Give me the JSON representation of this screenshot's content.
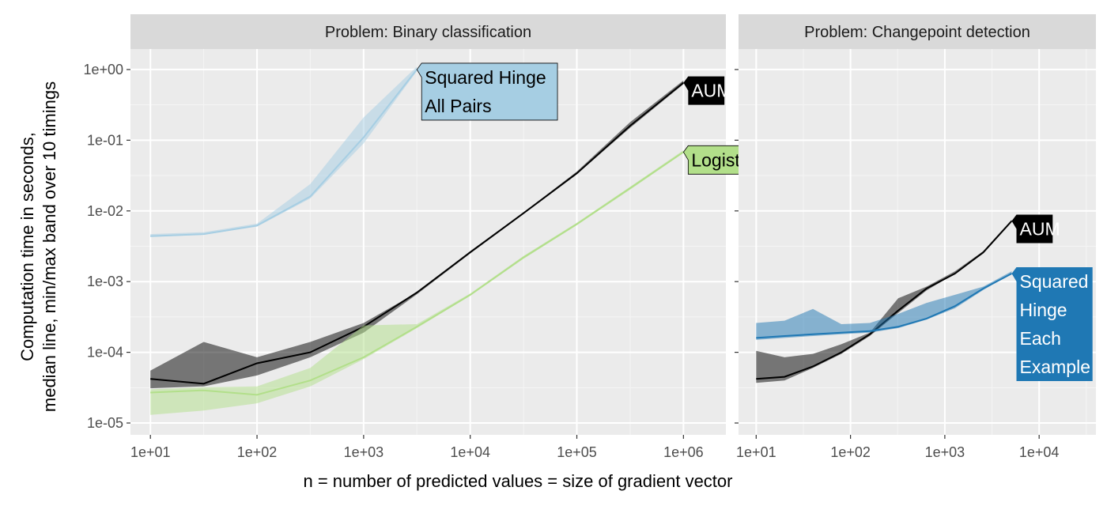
{
  "chart_data": {
    "type": "line",
    "xlabel": "n = number of predicted values = size of gradient vector",
    "ylabel_lines": [
      "Computation time in seconds,",
      "median line, min/max band over 10 timings"
    ],
    "x_scale": "log10",
    "y_scale": "log10",
    "grid": true,
    "legend": "none (direct labels)",
    "y_ticks": [
      {
        "value": 1e-05,
        "label": "1e-05"
      },
      {
        "value": 0.0001,
        "label": "1e-04"
      },
      {
        "value": 0.001,
        "label": "1e-03"
      },
      {
        "value": 0.01,
        "label": "1e-02"
      },
      {
        "value": 0.1,
        "label": "1e-01"
      },
      {
        "value": 1,
        "label": "1e+00"
      }
    ],
    "ylim": [
      6.8e-06,
      1.95
    ],
    "colors": {
      "squared_hinge_all_pairs": "#a6cee3",
      "squared_hinge_each_example": "#1f78b4",
      "logistic": "#b2df8a",
      "aum": "#000000"
    },
    "panels": [
      {
        "strip": "Problem: Binary classification",
        "xlim": [
          6.5,
          2500000
        ],
        "x_ticks": [
          {
            "value": 10,
            "label": "1e+01"
          },
          {
            "value": 100,
            "label": "1e+02"
          },
          {
            "value": 1000,
            "label": "1e+03"
          },
          {
            "value": 10000,
            "label": "1e+04"
          },
          {
            "value": 100000,
            "label": "1e+05"
          },
          {
            "value": 1000000,
            "label": "1e+06"
          }
        ],
        "series": [
          {
            "name": "Squared Hinge All Pairs",
            "label_lines": [
              "Squared Hinge",
              "All Pairs"
            ],
            "color_key": "squared_hinge_all_pairs",
            "x": [
              10,
              31.6,
              100,
              316,
              1000,
              3160
            ],
            "median": [
              0.0044,
              0.0047,
              0.0062,
              0.016,
              0.11,
              1.0
            ],
            "min": [
              0.0043,
              0.0046,
              0.006,
              0.015,
              0.09,
              0.95
            ],
            "max": [
              0.0047,
              0.005,
              0.0066,
              0.024,
              0.21,
              1.1
            ]
          },
          {
            "name": "AUM",
            "label_lines": [
              "AUM"
            ],
            "color_key": "aum",
            "x": [
              10,
              31.6,
              100,
              316,
              1000,
              3160,
              10000,
              31600,
              100000,
              316000,
              1000000
            ],
            "median": [
              4.2e-05,
              3.6e-05,
              7e-05,
              0.0001,
              0.00023,
              0.0007,
              0.0026,
              0.0093,
              0.034,
              0.16,
              0.65
            ],
            "min": [
              3.1e-05,
              3.3e-05,
              4.7e-05,
              8.5e-05,
              0.00019,
              0.00066,
              0.0025,
              0.009,
              0.033,
              0.15,
              0.62
            ],
            "max": [
              5.5e-05,
              0.00014,
              8.5e-05,
              0.00014,
              0.00026,
              0.0007,
              0.0027,
              0.0095,
              0.036,
              0.18,
              0.7
            ]
          },
          {
            "name": "Logistic",
            "label_lines": [
              "Logistic"
            ],
            "color_key": "logistic",
            "x": [
              10,
              31.6,
              100,
              316,
              1000,
              3160,
              10000,
              31600,
              100000,
              316000,
              1000000
            ],
            "median": [
              2.7e-05,
              2.9e-05,
              2.5e-05,
              4e-05,
              8.5e-05,
              0.00023,
              0.00065,
              0.0022,
              0.0065,
              0.021,
              0.068
            ],
            "min": [
              1.3e-05,
              1.5e-05,
              1.9e-05,
              3.3e-05,
              8e-05,
              0.00022,
              0.00063,
              0.0021,
              0.0063,
              0.02,
              0.066
            ],
            "max": [
              3e-05,
              3.2e-05,
              3.3e-05,
              6e-05,
              0.00024,
              0.00025,
              0.00068,
              0.0023,
              0.0068,
              0.022,
              0.072
            ]
          }
        ]
      },
      {
        "strip": "Problem: Changepoint detection",
        "xlim": [
          6.5,
          40000
        ],
        "x_ticks": [
          {
            "value": 10,
            "label": "1e+01"
          },
          {
            "value": 100,
            "label": "1e+02"
          },
          {
            "value": 1000,
            "label": "1e+03"
          },
          {
            "value": 10000,
            "label": "1e+04"
          }
        ],
        "series": [
          {
            "name": "AUM",
            "label_lines": [
              "AUM"
            ],
            "color_key": "aum",
            "x": [
              10,
              20,
              40,
              80,
              160,
              320,
              640,
              1280,
              2560,
              5120
            ],
            "median": [
              4.2e-05,
              4.5e-05,
              6.3e-05,
              0.0001,
              0.00018,
              0.00039,
              0.0008,
              0.0013,
              0.0026,
              0.0072
            ],
            "min": [
              3.7e-05,
              4e-05,
              6e-05,
              9.5e-05,
              0.00017,
              0.00036,
              0.00075,
              0.0013,
              0.0025,
              0.007
            ],
            "max": [
              0.000105,
              8.5e-05,
              9.5e-05,
              0.00013,
              0.00019,
              0.00058,
              0.00085,
              0.0014,
              0.0027,
              0.0075
            ]
          },
          {
            "name": "Squared Hinge Each Example",
            "label_lines": [
              "Squared",
              "Hinge",
              "Each",
              "Example"
            ],
            "color_key": "squared_hinge_each_example",
            "x": [
              10,
              20,
              40,
              80,
              160,
              320,
              640,
              1280,
              2560,
              5120
            ],
            "median": [
              0.00016,
              0.00017,
              0.00018,
              0.00019,
              0.0002,
              0.00023,
              0.0003,
              0.00045,
              0.0008,
              0.0013
            ],
            "min": [
              0.00015,
              0.00016,
              0.00017,
              0.00018,
              0.00019,
              0.00022,
              0.00029,
              0.00042,
              0.00076,
              0.0013
            ],
            "max": [
              0.00026,
              0.00028,
              0.00041,
              0.00025,
              0.00026,
              0.00035,
              0.0005,
              0.00065,
              0.00085,
              0.0014
            ]
          }
        ]
      }
    ]
  }
}
